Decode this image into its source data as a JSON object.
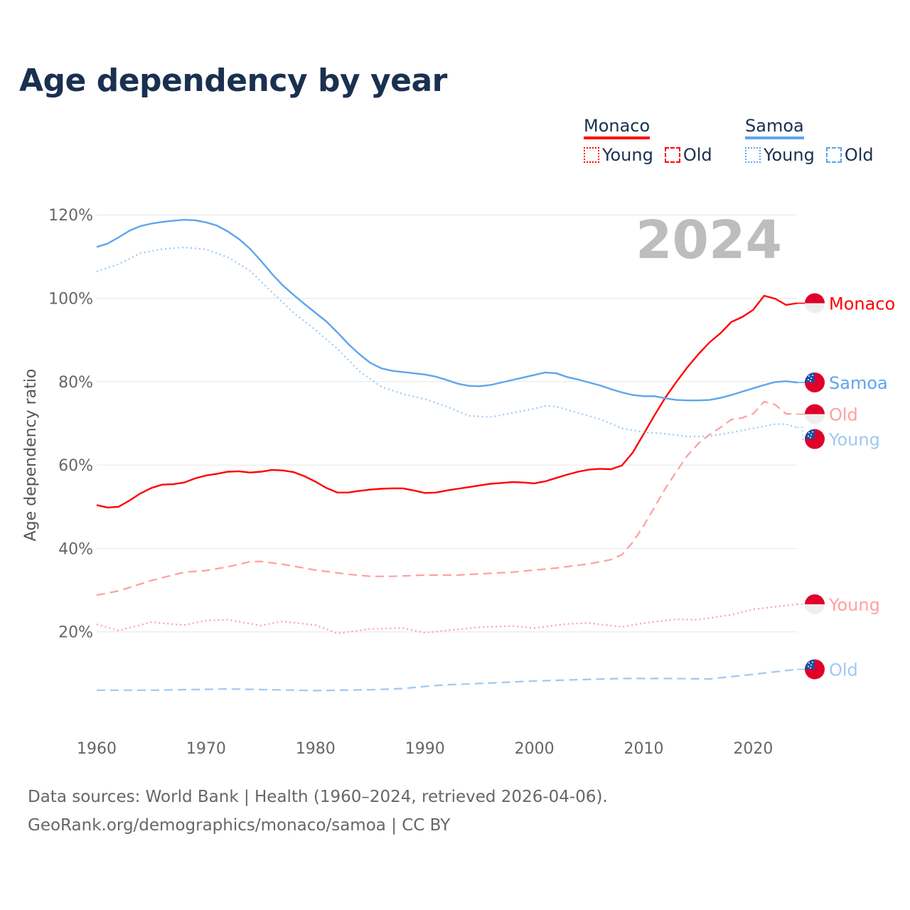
{
  "title": "Age dependency by year",
  "legend": {
    "groups": [
      {
        "name": "Monaco",
        "color": "#ff0000",
        "items": [
          {
            "label": "Young",
            "style": "dotted"
          },
          {
            "label": "Old",
            "style": "dashed"
          }
        ]
      },
      {
        "name": "Samoa",
        "color": "#5ea5ec",
        "items": [
          {
            "label": "Young",
            "style": "dotted"
          },
          {
            "label": "Old",
            "style": "dashed"
          }
        ]
      }
    ]
  },
  "sources": {
    "line1": "Data sources: World Bank | Health (1960–2024, retrieved 2026-04-06).",
    "line2": "GeoRank.org/demographics/monaco/samoa | CC BY"
  },
  "chart_data": {
    "type": "line",
    "title": "Age dependency by year",
    "year_label": "2024",
    "xlabel": "",
    "ylabel": "Age dependency ratio",
    "xlim": [
      1960,
      2024
    ],
    "ylim": [
      0,
      125
    ],
    "xticks": [
      1960,
      1970,
      1980,
      1990,
      2000,
      2010,
      2020
    ],
    "yticks": [
      {
        "v": 20,
        "label": "20%"
      },
      {
        "v": 40,
        "label": "40%"
      },
      {
        "v": 60,
        "label": "60%"
      },
      {
        "v": 80,
        "label": "80%"
      },
      {
        "v": 100,
        "label": "100%"
      },
      {
        "v": 120,
        "label": "120%"
      }
    ],
    "grid": true,
    "series": [
      {
        "name": "Monaco",
        "end_label": "Monaco",
        "country": "monaco",
        "color": "#ff0000",
        "style": "solid",
        "x": [
          1960,
          1961,
          1962,
          1963,
          1964,
          1965,
          1966,
          1967,
          1968,
          1969,
          1970,
          1971,
          1972,
          1973,
          1974,
          1975,
          1976,
          1977,
          1978,
          1979,
          1980,
          1981,
          1982,
          1983,
          1984,
          1985,
          1986,
          1987,
          1988,
          1989,
          1990,
          1991,
          1992,
          1993,
          1994,
          1995,
          1996,
          1997,
          1998,
          1999,
          2000,
          2001,
          2002,
          2003,
          2004,
          2005,
          2006,
          2007,
          2008,
          2009,
          2010,
          2011,
          2012,
          2013,
          2014,
          2015,
          2016,
          2017,
          2018,
          2019,
          2020,
          2021,
          2022,
          2023,
          2024
        ],
        "y": [
          50.4,
          49.8,
          50,
          51.5,
          53.2,
          54.5,
          55.3,
          55.4,
          55.8,
          56.8,
          57.5,
          57.9,
          58.4,
          58.5,
          58.2,
          58.4,
          58.8,
          58.7,
          58.3,
          57.3,
          56,
          54.5,
          53.4,
          53.4,
          53.8,
          54.1,
          54.3,
          54.4,
          54.4,
          53.9,
          53.3,
          53.4,
          53.9,
          54.3,
          54.7,
          55.1,
          55.5,
          55.7,
          55.9,
          55.8,
          55.6,
          56.1,
          56.9,
          57.7,
          58.4,
          58.9,
          59.1,
          59,
          59.9,
          63,
          67.5,
          72,
          76.3,
          80,
          83.5,
          86.6,
          89.4,
          91.6,
          94.3,
          95.5,
          97.2,
          100.6,
          99.9,
          98.4,
          98.8
        ]
      },
      {
        "name": "Monaco Old",
        "end_label": "Old",
        "country": "monaco",
        "color": "#ff9f9f",
        "style": "dashed",
        "x": [
          1960,
          1962,
          1965,
          1968,
          1970,
          1972,
          1974,
          1975,
          1977,
          1980,
          1983,
          1985,
          1987,
          1990,
          1993,
          1995,
          1998,
          2000,
          2002,
          2005,
          2007,
          2008,
          2009,
          2010,
          2011,
          2012,
          2013,
          2014,
          2015,
          2016,
          2017,
          2018,
          2019,
          2020,
          2021,
          2022,
          2023,
          2024
        ],
        "y": [
          28.8,
          29.8,
          32.3,
          34.3,
          34.7,
          35.6,
          36.8,
          36.9,
          36.2,
          34.8,
          33.8,
          33.3,
          33.3,
          33.6,
          33.6,
          33.9,
          34.3,
          34.8,
          35.3,
          36.3,
          37.3,
          38.5,
          41.5,
          45.5,
          50,
          54.5,
          58.5,
          62.3,
          65.2,
          67.3,
          69,
          70.9,
          71.3,
          72.3,
          75.2,
          74.5,
          72.3,
          72.2
        ]
      },
      {
        "name": "Monaco Young",
        "end_label": "Young",
        "country": "monaco",
        "color": "#ff9f9f",
        "style": "dotted",
        "x": [
          1960,
          1962,
          1965,
          1968,
          1970,
          1972,
          1975,
          1977,
          1980,
          1982,
          1985,
          1988,
          1990,
          1995,
          1998,
          2000,
          2003,
          2005,
          2008,
          2010,
          2013,
          2015,
          2018,
          2020,
          2022,
          2024
        ],
        "y": [
          21.8,
          20.3,
          22.3,
          21.6,
          22.7,
          22.9,
          21.5,
          22.5,
          21.6,
          19.6,
          20.7,
          20.9,
          19.8,
          21.1,
          21.4,
          20.9,
          21.9,
          22.1,
          21.2,
          22.1,
          23,
          22.9,
          24.1,
          25.4,
          26,
          26.6
        ]
      },
      {
        "name": "Samoa",
        "end_label": "Samoa",
        "country": "samoa",
        "color": "#5ea5ec",
        "style": "solid",
        "x": [
          1960,
          1961,
          1962,
          1963,
          1964,
          1965,
          1966,
          1967,
          1968,
          1969,
          1970,
          1971,
          1972,
          1973,
          1974,
          1975,
          1976,
          1977,
          1978,
          1979,
          1980,
          1981,
          1982,
          1983,
          1984,
          1985,
          1986,
          1987,
          1988,
          1989,
          1990,
          1991,
          1992,
          1993,
          1994,
          1995,
          1996,
          1997,
          1998,
          1999,
          2000,
          2001,
          2002,
          2003,
          2004,
          2005,
          2006,
          2007,
          2008,
          2009,
          2010,
          2011,
          2012,
          2013,
          2014,
          2015,
          2016,
          2017,
          2018,
          2019,
          2020,
          2021,
          2022,
          2023,
          2024
        ],
        "y": [
          112.3,
          113.1,
          114.6,
          116.2,
          117.3,
          117.9,
          118.3,
          118.6,
          118.8,
          118.7,
          118.2,
          117.4,
          116,
          114.2,
          111.9,
          109,
          105.9,
          103.1,
          100.8,
          98.6,
          96.5,
          94.4,
          91.8,
          89,
          86.6,
          84.5,
          83.2,
          82.6,
          82.3,
          82,
          81.7,
          81.2,
          80.4,
          79.5,
          79,
          78.9,
          79.2,
          79.8,
          80.4,
          81,
          81.6,
          82.2,
          82,
          81.1,
          80.5,
          79.8,
          79.1,
          78.2,
          77.4,
          76.8,
          76.5,
          76.5,
          76,
          75.6,
          75.5,
          75.5,
          75.6,
          76.1,
          76.8,
          77.6,
          78.4,
          79.2,
          79.9,
          80.1,
          79.8
        ]
      },
      {
        "name": "Samoa Young",
        "end_label": "Young",
        "country": "samoa",
        "color": "#9fc8f2",
        "style": "dotted",
        "x": [
          1960,
          1962,
          1964,
          1966,
          1968,
          1970,
          1972,
          1974,
          1976,
          1978,
          1980,
          1982,
          1984,
          1986,
          1988,
          1990,
          1992,
          1994,
          1996,
          1998,
          2000,
          2001,
          2002,
          2004,
          2006,
          2008,
          2010,
          2012,
          2014,
          2016,
          2018,
          2020,
          2022,
          2023,
          2024
        ],
        "y": [
          106.4,
          108.2,
          110.8,
          111.8,
          112.2,
          111.7,
          109.8,
          106.6,
          101.5,
          96.5,
          92.4,
          87.9,
          82.5,
          78.8,
          77,
          75.8,
          74,
          71.8,
          71.5,
          72.5,
          73.5,
          74.2,
          74,
          72.5,
          71,
          68.8,
          67.9,
          67.5,
          66.8,
          66.9,
          67.8,
          68.8,
          69.8,
          69.8,
          69
        ]
      },
      {
        "name": "Samoa Old",
        "end_label": "Old",
        "country": "samoa",
        "color": "#9fc8f2",
        "style": "dashed",
        "x": [
          1960,
          1965,
          1970,
          1972,
          1974,
          1980,
          1985,
          1988,
          1990,
          1992,
          1995,
          2000,
          2005,
          2008,
          2012,
          2016,
          2020,
          2024
        ],
        "y": [
          6.0,
          6.0,
          6.2,
          6.3,
          6.2,
          5.9,
          6.1,
          6.4,
          6.9,
          7.3,
          7.6,
          8.2,
          8.6,
          8.8,
          8.8,
          8.7,
          9.8,
          11
        ]
      }
    ]
  }
}
